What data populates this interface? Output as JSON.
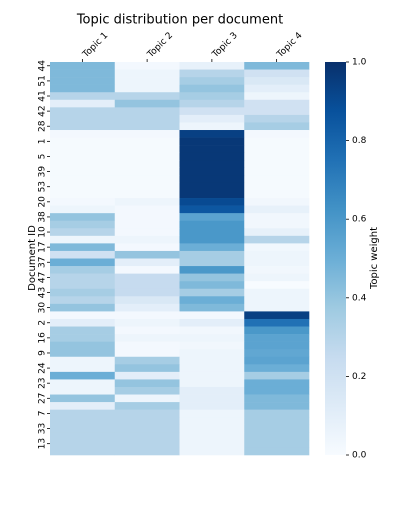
{
  "chart_data": {
    "type": "heatmap",
    "title": "Topic distribution per document",
    "x_label": null,
    "y_label": "Document ID",
    "colorbar_label": "Topic weight",
    "categories": [
      "Topic 1",
      "Topic 2",
      "Topic 3",
      "Topic 4"
    ],
    "rows": [
      "44",
      null,
      "51",
      null,
      "41",
      null,
      "42",
      null,
      "28",
      null,
      "1",
      null,
      "5",
      null,
      "39",
      null,
      "53",
      null,
      "20",
      null,
      "38",
      null,
      "10",
      null,
      "17",
      null,
      "37",
      null,
      "47",
      null,
      "43",
      null,
      "30",
      null,
      "2",
      null,
      "16",
      null,
      "9",
      null,
      "24",
      null,
      "23",
      null,
      "27",
      null,
      "7",
      null,
      "33",
      null,
      "13",
      null
    ],
    "values": [
      [
        0.45,
        0.02,
        0.08,
        0.45
      ],
      [
        0.45,
        0.05,
        0.3,
        0.2
      ],
      [
        0.45,
        0.05,
        0.35,
        0.15
      ],
      [
        0.45,
        0.05,
        0.4,
        0.1
      ],
      [
        0.3,
        0.3,
        0.35,
        0.05
      ],
      [
        0.1,
        0.4,
        0.3,
        0.2
      ],
      [
        0.3,
        0.3,
        0.2,
        0.2
      ],
      [
        0.3,
        0.3,
        0.1,
        0.3
      ],
      [
        0.3,
        0.3,
        0.05,
        0.35
      ],
      [
        0.02,
        0.02,
        0.94,
        0.02
      ],
      [
        0.01,
        0.01,
        0.97,
        0.01
      ],
      [
        0.01,
        0.01,
        0.97,
        0.01
      ],
      [
        0.01,
        0.01,
        0.97,
        0.01
      ],
      [
        0.01,
        0.01,
        0.97,
        0.01
      ],
      [
        0.01,
        0.01,
        0.97,
        0.01
      ],
      [
        0.01,
        0.01,
        0.97,
        0.01
      ],
      [
        0.01,
        0.01,
        0.97,
        0.01
      ],
      [
        0.01,
        0.01,
        0.97,
        0.01
      ],
      [
        0.02,
        0.05,
        0.9,
        0.03
      ],
      [
        0.05,
        0.02,
        0.85,
        0.08
      ],
      [
        0.4,
        0.02,
        0.55,
        0.03
      ],
      [
        0.35,
        0.02,
        0.6,
        0.03
      ],
      [
        0.3,
        0.02,
        0.6,
        0.08
      ],
      [
        0.05,
        0.05,
        0.6,
        0.3
      ],
      [
        0.45,
        0.02,
        0.5,
        0.03
      ],
      [
        0.2,
        0.4,
        0.35,
        0.05
      ],
      [
        0.5,
        0.1,
        0.35,
        0.05
      ],
      [
        0.35,
        0.02,
        0.6,
        0.03
      ],
      [
        0.3,
        0.25,
        0.4,
        0.05
      ],
      [
        0.3,
        0.25,
        0.45,
        0.0
      ],
      [
        0.35,
        0.25,
        0.35,
        0.05
      ],
      [
        0.3,
        0.15,
        0.5,
        0.05
      ],
      [
        0.4,
        0.1,
        0.45,
        0.05
      ],
      [
        0.02,
        0.02,
        0.02,
        0.94
      ],
      [
        0.1,
        0.05,
        0.1,
        0.75
      ],
      [
        0.35,
        0.02,
        0.03,
        0.6
      ],
      [
        0.35,
        0.05,
        0.05,
        0.55
      ],
      [
        0.4,
        0.02,
        0.03,
        0.55
      ],
      [
        0.4,
        0.02,
        0.05,
        0.53
      ],
      [
        0.05,
        0.35,
        0.05,
        0.55
      ],
      [
        0.05,
        0.4,
        0.05,
        0.5
      ],
      [
        0.5,
        0.1,
        0.05,
        0.35
      ],
      [
        0.05,
        0.4,
        0.05,
        0.5
      ],
      [
        0.05,
        0.35,
        0.1,
        0.5
      ],
      [
        0.4,
        0.05,
        0.1,
        0.45
      ],
      [
        0.1,
        0.35,
        0.1,
        0.45
      ],
      [
        0.3,
        0.3,
        0.05,
        0.35
      ],
      [
        0.3,
        0.3,
        0.05,
        0.35
      ],
      [
        0.3,
        0.3,
        0.05,
        0.35
      ],
      [
        0.3,
        0.3,
        0.05,
        0.35
      ],
      [
        0.3,
        0.3,
        0.05,
        0.35
      ],
      [
        0.3,
        0.3,
        0.05,
        0.35
      ]
    ],
    "zlim": [
      0,
      1
    ],
    "zticks": [
      {
        "value": 0,
        "label": "0.0"
      },
      {
        "value": 0.2,
        "label": "0.2"
      },
      {
        "value": 0.4,
        "label": "0.4"
      },
      {
        "value": 0.6,
        "label": "0.6"
      },
      {
        "value": 0.8,
        "label": "0.8"
      },
      {
        "value": 1,
        "label": "1.0"
      }
    ],
    "colormap": [
      "#f7fbff",
      "#deebf7",
      "#c6dbef",
      "#9ecae1",
      "#6baed6",
      "#4292c6",
      "#2171b5",
      "#08519c",
      "#08306b"
    ]
  }
}
